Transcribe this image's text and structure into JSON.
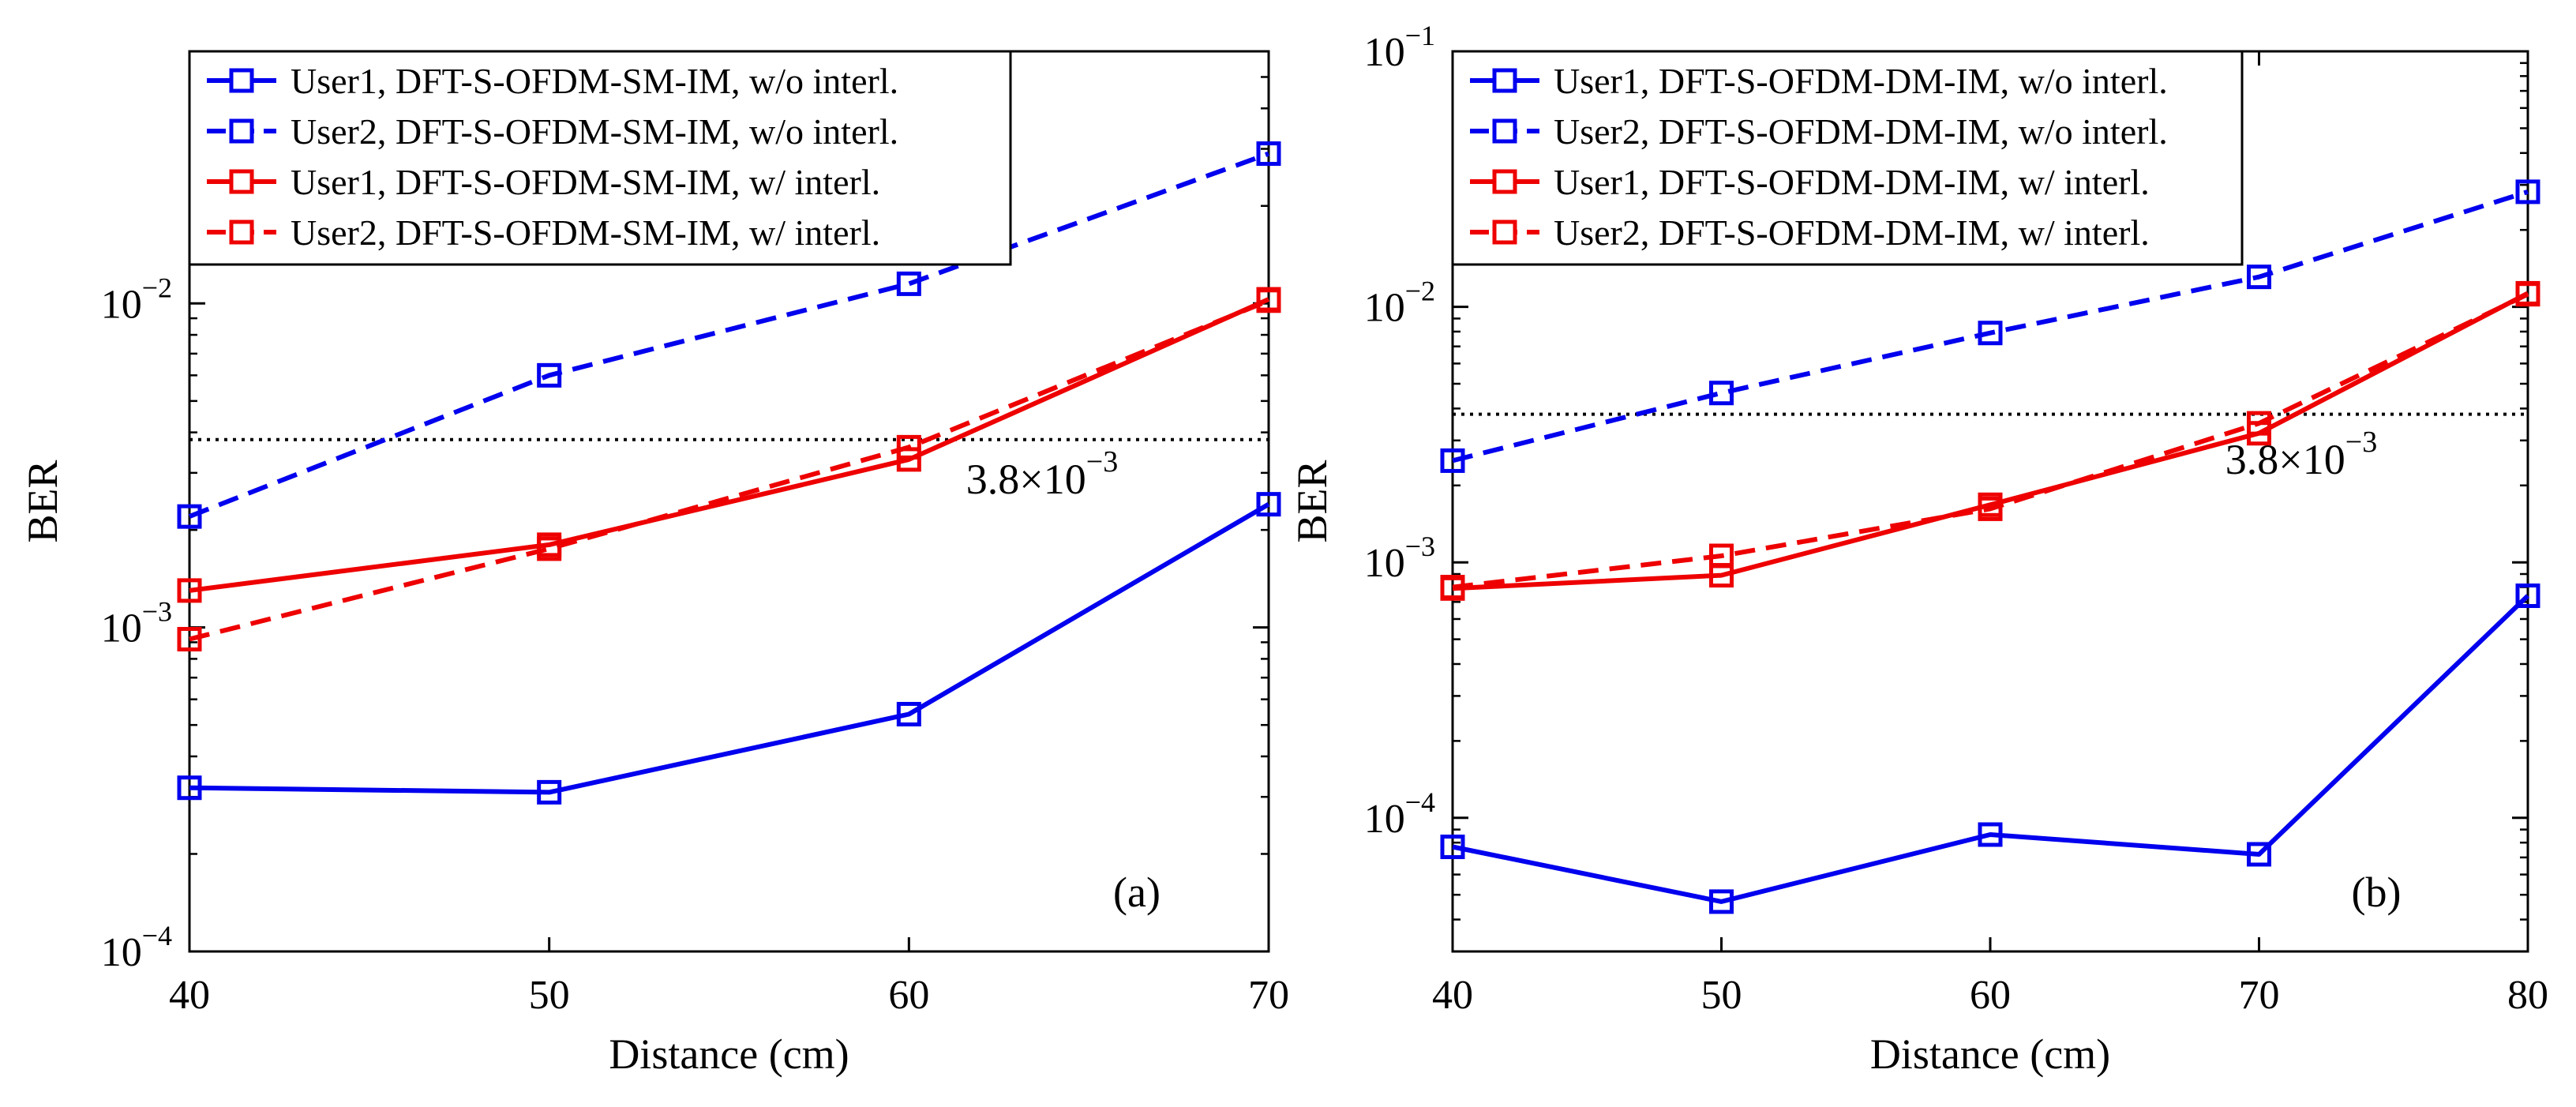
{
  "chart_data": [
    {
      "type": "line",
      "panel_label": "(a)",
      "xlabel": "Distance (cm)",
      "ylabel": "BER",
      "y_scale": "log",
      "xlim": [
        40,
        70
      ],
      "ylim": [
        0.0001,
        0.06
      ],
      "x_ticks": [
        40,
        50,
        60,
        70
      ],
      "y_ticks": [
        {
          "value": 0.0001,
          "base": "10",
          "exp": "−4"
        },
        {
          "value": 0.001,
          "base": "10",
          "exp": "−3"
        },
        {
          "value": 0.01,
          "base": "10",
          "exp": "−2"
        }
      ],
      "legend_position": "top-left",
      "threshold": {
        "value": 0.0038,
        "label_base": "3.8×10",
        "label_exp": "−3"
      },
      "series": [
        {
          "name": "User1, DFT-S-OFDM-SM-IM, w/o interl.",
          "color": "#0000ee",
          "dash": "solid",
          "points": [
            [
              40,
              0.00032
            ],
            [
              50,
              0.00031
            ],
            [
              60,
              0.00054
            ],
            [
              70,
              0.0024
            ]
          ]
        },
        {
          "name": "User2, DFT-S-OFDM-SM-IM, w/o interl.",
          "color": "#0000ee",
          "dash": "dashed",
          "points": [
            [
              40,
              0.0022
            ],
            [
              50,
              0.006
            ],
            [
              60,
              0.0115
            ],
            [
              70,
              0.029
            ]
          ]
        },
        {
          "name": "User1, DFT-S-OFDM-SM-IM, w/ interl.",
          "color": "#ee0000",
          "dash": "solid",
          "points": [
            [
              40,
              0.0013
            ],
            [
              50,
              0.0018
            ],
            [
              60,
              0.0033
            ],
            [
              70,
              0.0103
            ]
          ]
        },
        {
          "name": "User2, DFT-S-OFDM-SM-IM, w/ interl.",
          "color": "#ee0000",
          "dash": "dashed",
          "points": [
            [
              40,
              0.00092
            ],
            [
              50,
              0.00175
            ],
            [
              60,
              0.0036
            ],
            [
              70,
              0.0102
            ]
          ]
        }
      ]
    },
    {
      "type": "line",
      "panel_label": "(b)",
      "xlabel": "Distance (cm)",
      "ylabel": "BER",
      "y_scale": "log",
      "xlim": [
        40,
        80
      ],
      "ylim": [
        3e-05,
        0.1
      ],
      "x_ticks": [
        40,
        50,
        60,
        70,
        80
      ],
      "y_ticks": [
        {
          "value": 0.0001,
          "base": "10",
          "exp": "−4"
        },
        {
          "value": 0.001,
          "base": "10",
          "exp": "−3"
        },
        {
          "value": 0.01,
          "base": "10",
          "exp": "−2"
        },
        {
          "value": 0.1,
          "base": "10",
          "exp": "−1"
        }
      ],
      "legend_position": "top-left",
      "threshold": {
        "value": 0.0038,
        "label_base": "3.8×10",
        "label_exp": "−3"
      },
      "series": [
        {
          "name": "User1, DFT-S-OFDM-DM-IM, w/o interl.",
          "color": "#0000ee",
          "dash": "solid",
          "points": [
            [
              40,
              7.7e-05
            ],
            [
              50,
              4.7e-05
            ],
            [
              60,
              8.6e-05
            ],
            [
              70,
              7.2e-05
            ],
            [
              80,
              0.00074
            ]
          ]
        },
        {
          "name": "User2, DFT-S-OFDM-DM-IM, w/o interl.",
          "color": "#0000ee",
          "dash": "dashed",
          "points": [
            [
              40,
              0.0025
            ],
            [
              50,
              0.0046
            ],
            [
              60,
              0.0079
            ],
            [
              70,
              0.0131
            ],
            [
              80,
              0.0282
            ]
          ]
        },
        {
          "name": "User1, DFT-S-OFDM-DM-IM, w/ interl.",
          "color": "#ee0000",
          "dash": "solid",
          "points": [
            [
              40,
              0.00079
            ],
            [
              50,
              0.00089
            ],
            [
              60,
              0.00168
            ],
            [
              70,
              0.0032
            ],
            [
              80,
              0.0113
            ]
          ]
        },
        {
          "name": "User2, DFT-S-OFDM-DM-IM, w/ interl.",
          "color": "#ee0000",
          "dash": "dashed",
          "points": [
            [
              40,
              0.0008
            ],
            [
              50,
              0.00106
            ],
            [
              60,
              0.00162
            ],
            [
              70,
              0.0035
            ],
            [
              80,
              0.0112
            ]
          ]
        }
      ]
    }
  ]
}
